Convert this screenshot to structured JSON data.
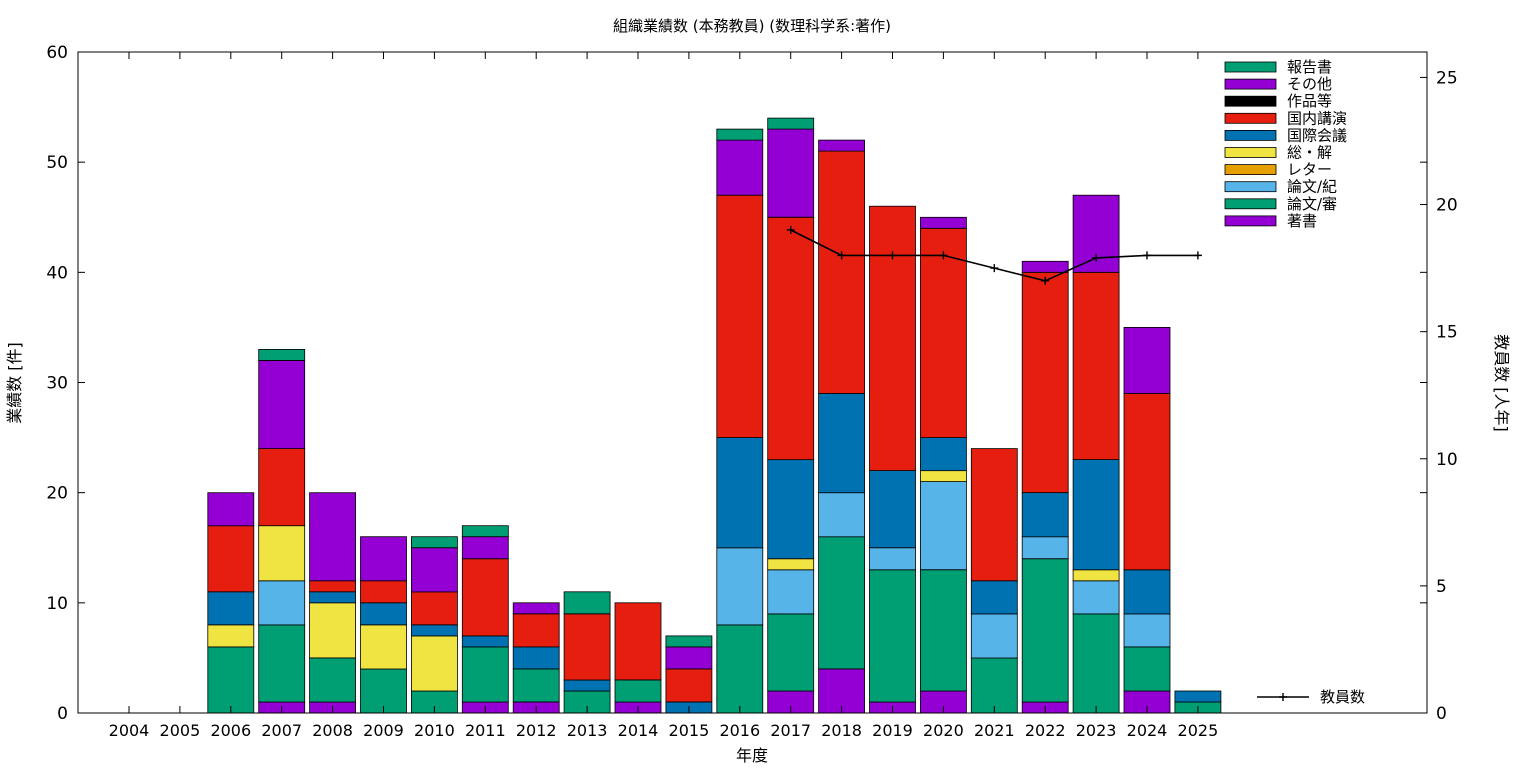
{
  "chart_data": {
    "type": "bar",
    "stacked": true,
    "title": "組織業績数 (本務教員) (数理科学系:著作)",
    "xlabel": "年度",
    "ylabel": "業績数 [件]",
    "y2label": "教員数 [人年]",
    "ylim": [
      0,
      60
    ],
    "y2lim": [
      0,
      26
    ],
    "yticks": [
      0,
      10,
      20,
      30,
      40,
      50,
      60
    ],
    "y2ticks": [
      0,
      5,
      10,
      15,
      20,
      25
    ],
    "grid": false,
    "legend_position": "top-right",
    "categories": [
      "2004",
      "2005",
      "2006",
      "2007",
      "2008",
      "2009",
      "2010",
      "2011",
      "2012",
      "2013",
      "2014",
      "2015",
      "2016",
      "2017",
      "2018",
      "2019",
      "2020",
      "2021",
      "2022",
      "2023",
      "2024",
      "2025"
    ],
    "series": [
      {
        "name": "著書",
        "color": "#9400d3",
        "values": [
          0,
          0,
          0,
          1,
          1,
          0,
          0,
          1,
          1,
          0,
          1,
          0,
          0,
          2,
          4,
          1,
          2,
          0,
          1,
          0,
          2,
          0
        ]
      },
      {
        "name": "論文/審",
        "color": "#009e73",
        "values": [
          0,
          0,
          6,
          7,
          4,
          4,
          2,
          5,
          3,
          2,
          2,
          0,
          8,
          7,
          12,
          12,
          11,
          5,
          13,
          9,
          4,
          1
        ]
      },
      {
        "name": "論文/紀",
        "color": "#56b4e9",
        "values": [
          0,
          0,
          0,
          4,
          0,
          0,
          0,
          0,
          0,
          0,
          0,
          0,
          7,
          4,
          4,
          2,
          8,
          4,
          2,
          3,
          3,
          0
        ]
      },
      {
        "name": "レター",
        "color": "#e69f00",
        "values": [
          0,
          0,
          0,
          0,
          0,
          0,
          0,
          0,
          0,
          0,
          0,
          0,
          0,
          0,
          0,
          0,
          0,
          0,
          0,
          0,
          0,
          0
        ]
      },
      {
        "name": "総・解",
        "color": "#f0e442",
        "values": [
          0,
          0,
          2,
          5,
          5,
          4,
          5,
          0,
          0,
          0,
          0,
          0,
          0,
          1,
          0,
          0,
          1,
          0,
          0,
          1,
          0,
          0
        ]
      },
      {
        "name": "国際会議",
        "color": "#0072b2",
        "values": [
          0,
          0,
          3,
          0,
          1,
          2,
          1,
          1,
          2,
          1,
          0,
          1,
          10,
          9,
          9,
          7,
          3,
          3,
          4,
          10,
          4,
          1
        ]
      },
      {
        "name": "国内講演",
        "color": "#e51e10",
        "values": [
          0,
          0,
          6,
          7,
          1,
          2,
          3,
          7,
          3,
          6,
          7,
          3,
          22,
          22,
          22,
          24,
          19,
          12,
          20,
          17,
          16,
          0
        ]
      },
      {
        "name": "作品等",
        "color": "#000000",
        "values": [
          0,
          0,
          0,
          0,
          0,
          0,
          0,
          0,
          0,
          0,
          0,
          0,
          0,
          0,
          0,
          0,
          0,
          0,
          0,
          0,
          0,
          0
        ]
      },
      {
        "name": "その他",
        "color": "#9400d3",
        "values": [
          0,
          0,
          3,
          8,
          8,
          4,
          4,
          2,
          1,
          0,
          0,
          2,
          5,
          8,
          1,
          0,
          1,
          0,
          1,
          7,
          6,
          0
        ]
      },
      {
        "name": "報告書",
        "color": "#009e73",
        "values": [
          0,
          0,
          0,
          1,
          0,
          0,
          1,
          1,
          0,
          2,
          0,
          1,
          1,
          1,
          0,
          0,
          0,
          0,
          0,
          0,
          0,
          0
        ]
      }
    ],
    "line": {
      "name": "教員数",
      "color": "#000000",
      "x": [
        "2017",
        "2018",
        "2019",
        "2020",
        "2021",
        "2022",
        "2023",
        "2024",
        "2025"
      ],
      "values": [
        19,
        18,
        18,
        18,
        17.5,
        17,
        17.9,
        18,
        18
      ]
    }
  }
}
